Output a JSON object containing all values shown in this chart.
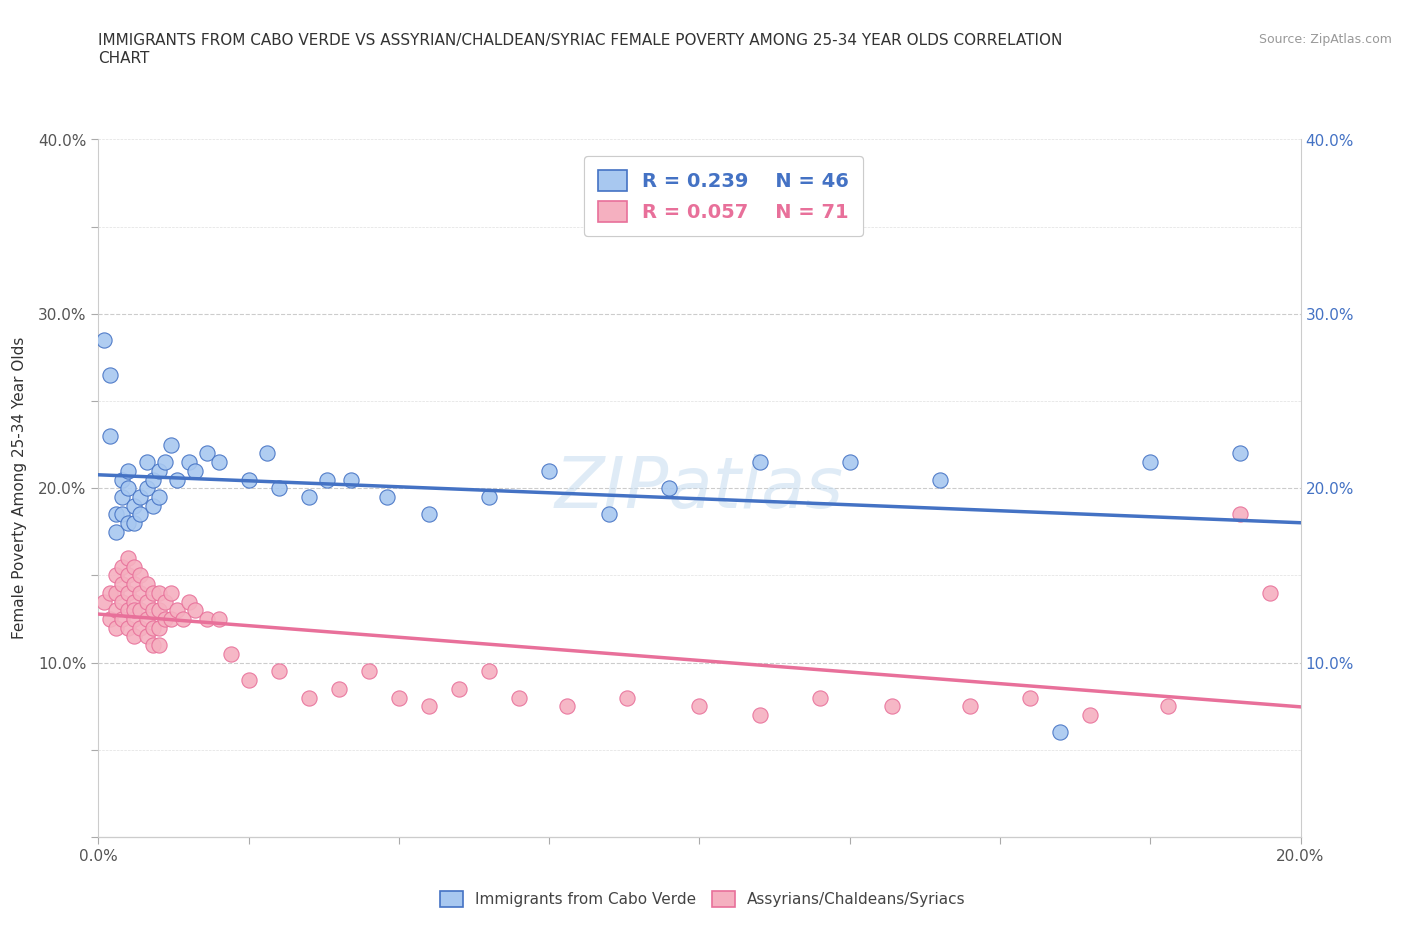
{
  "title_line1": "IMMIGRANTS FROM CABO VERDE VS ASSYRIAN/CHALDEAN/SYRIAC FEMALE POVERTY AMONG 25-34 YEAR OLDS CORRELATION",
  "title_line2": "CHART",
  "source": "Source: ZipAtlas.com",
  "ylabel": "Female Poverty Among 25-34 Year Olds",
  "xlim": [
    0.0,
    0.2
  ],
  "ylim": [
    0.0,
    0.4
  ],
  "color_blue": "#a8c8f0",
  "color_pink": "#f5b0c0",
  "line_color_blue": "#4472c4",
  "line_color_pink": "#e8709a",
  "watermark": "ZIPatlas",
  "cabo_verde_x": [
    0.001,
    0.002,
    0.002,
    0.003,
    0.003,
    0.004,
    0.004,
    0.004,
    0.005,
    0.005,
    0.005,
    0.006,
    0.006,
    0.007,
    0.007,
    0.008,
    0.008,
    0.009,
    0.009,
    0.01,
    0.01,
    0.011,
    0.012,
    0.013,
    0.015,
    0.016,
    0.018,
    0.02,
    0.025,
    0.028,
    0.03,
    0.035,
    0.038,
    0.042,
    0.048,
    0.055,
    0.065,
    0.075,
    0.085,
    0.095,
    0.11,
    0.125,
    0.14,
    0.16,
    0.175,
    0.19
  ],
  "cabo_verde_y": [
    0.285,
    0.23,
    0.265,
    0.175,
    0.185,
    0.205,
    0.195,
    0.185,
    0.21,
    0.2,
    0.18,
    0.19,
    0.18,
    0.195,
    0.185,
    0.215,
    0.2,
    0.205,
    0.19,
    0.21,
    0.195,
    0.215,
    0.225,
    0.205,
    0.215,
    0.21,
    0.22,
    0.215,
    0.205,
    0.22,
    0.2,
    0.195,
    0.205,
    0.205,
    0.195,
    0.185,
    0.195,
    0.21,
    0.185,
    0.2,
    0.215,
    0.215,
    0.205,
    0.06,
    0.215,
    0.22
  ],
  "assyrian_x": [
    0.001,
    0.002,
    0.002,
    0.003,
    0.003,
    0.003,
    0.003,
    0.004,
    0.004,
    0.004,
    0.004,
    0.005,
    0.005,
    0.005,
    0.005,
    0.005,
    0.006,
    0.006,
    0.006,
    0.006,
    0.006,
    0.006,
    0.007,
    0.007,
    0.007,
    0.007,
    0.008,
    0.008,
    0.008,
    0.008,
    0.009,
    0.009,
    0.009,
    0.009,
    0.01,
    0.01,
    0.01,
    0.01,
    0.011,
    0.011,
    0.012,
    0.012,
    0.013,
    0.014,
    0.015,
    0.016,
    0.018,
    0.02,
    0.022,
    0.025,
    0.03,
    0.035,
    0.04,
    0.045,
    0.05,
    0.055,
    0.06,
    0.065,
    0.07,
    0.078,
    0.088,
    0.1,
    0.11,
    0.12,
    0.132,
    0.145,
    0.155,
    0.165,
    0.178,
    0.19,
    0.195
  ],
  "assyrian_y": [
    0.135,
    0.14,
    0.125,
    0.15,
    0.14,
    0.13,
    0.12,
    0.155,
    0.145,
    0.135,
    0.125,
    0.16,
    0.15,
    0.14,
    0.13,
    0.12,
    0.155,
    0.145,
    0.135,
    0.125,
    0.115,
    0.13,
    0.15,
    0.14,
    0.13,
    0.12,
    0.145,
    0.135,
    0.125,
    0.115,
    0.14,
    0.13,
    0.12,
    0.11,
    0.14,
    0.13,
    0.12,
    0.11,
    0.135,
    0.125,
    0.14,
    0.125,
    0.13,
    0.125,
    0.135,
    0.13,
    0.125,
    0.125,
    0.105,
    0.09,
    0.095,
    0.08,
    0.085,
    0.095,
    0.08,
    0.075,
    0.085,
    0.095,
    0.08,
    0.075,
    0.08,
    0.075,
    0.07,
    0.08,
    0.075,
    0.075,
    0.08,
    0.07,
    0.075,
    0.185,
    0.14
  ]
}
